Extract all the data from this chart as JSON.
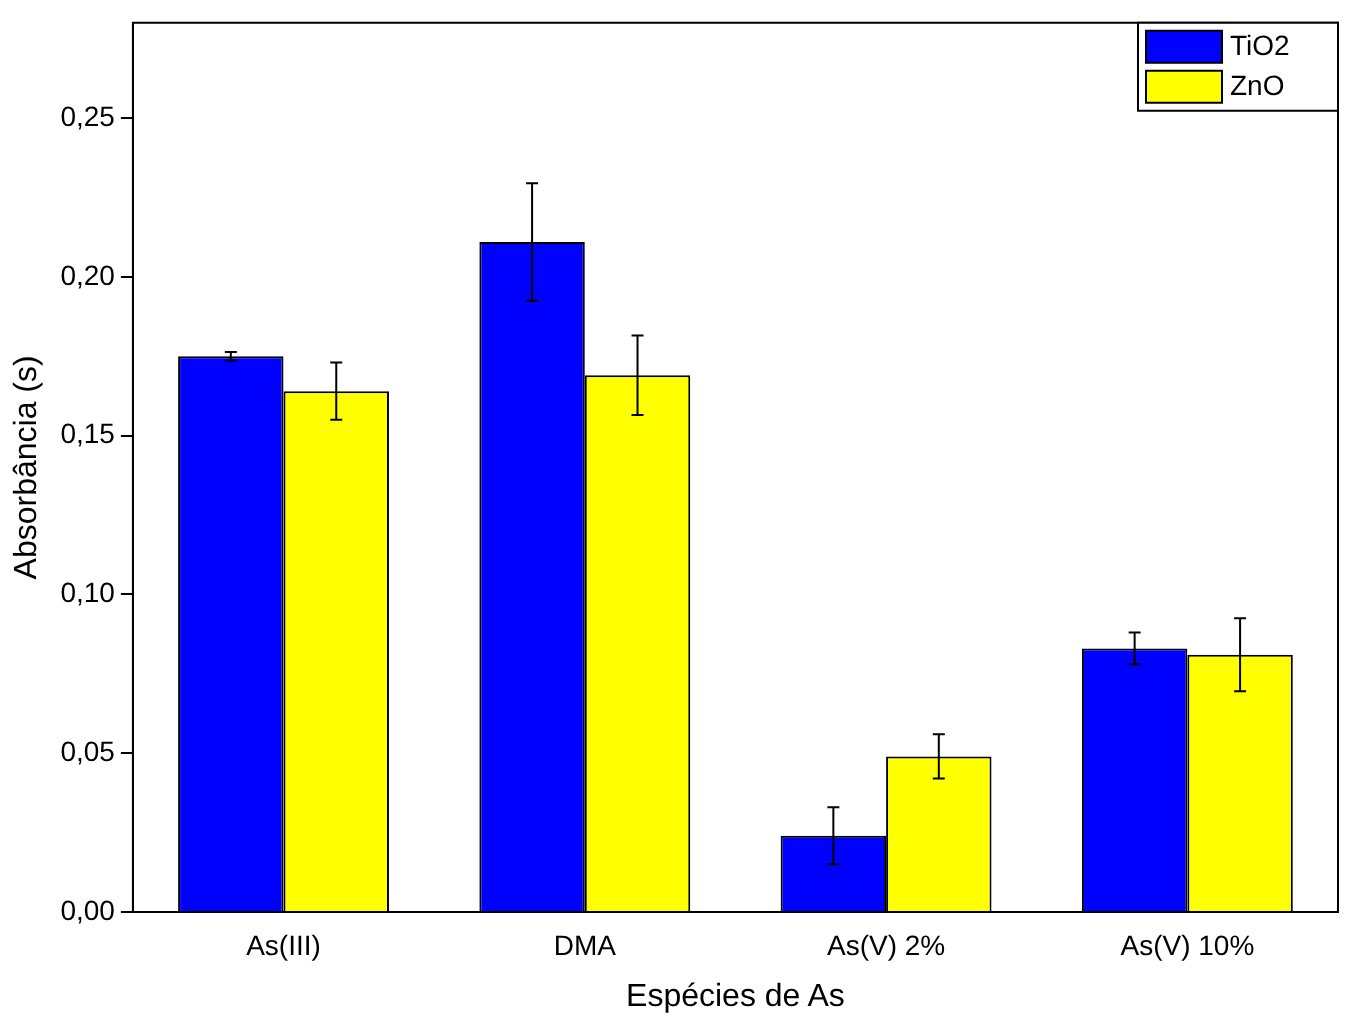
{
  "chart_data": {
    "type": "bar",
    "xlabel": "Espécies de As",
    "ylabel": "Absorbância (s)",
    "categories": [
      "As(III)",
      "DMA",
      "As(V) 2%",
      "As(V) 10%"
    ],
    "series": [
      {
        "name": "TiO2",
        "color": "#0000ff",
        "values": [
          0.175,
          0.211,
          0.024,
          0.083
        ],
        "errors": [
          0.0013,
          0.0185,
          0.009,
          0.005
        ]
      },
      {
        "name": "ZnO",
        "color": "#ffff00",
        "values": [
          0.164,
          0.169,
          0.049,
          0.081
        ],
        "errors": [
          0.009,
          0.0125,
          0.007,
          0.0115
        ]
      }
    ],
    "ylim": [
      0,
      0.28
    ],
    "yticks": [
      {
        "value": 0,
        "label": "0,00"
      },
      {
        "value": 0.05,
        "label": "0,05"
      },
      {
        "value": 0.1,
        "label": "0,10"
      },
      {
        "value": 0.15,
        "label": "0,15"
      },
      {
        "value": 0.2,
        "label": "0,20"
      },
      {
        "value": 0.25,
        "label": "0,25"
      }
    ],
    "legend": "top right",
    "grid": false
  }
}
